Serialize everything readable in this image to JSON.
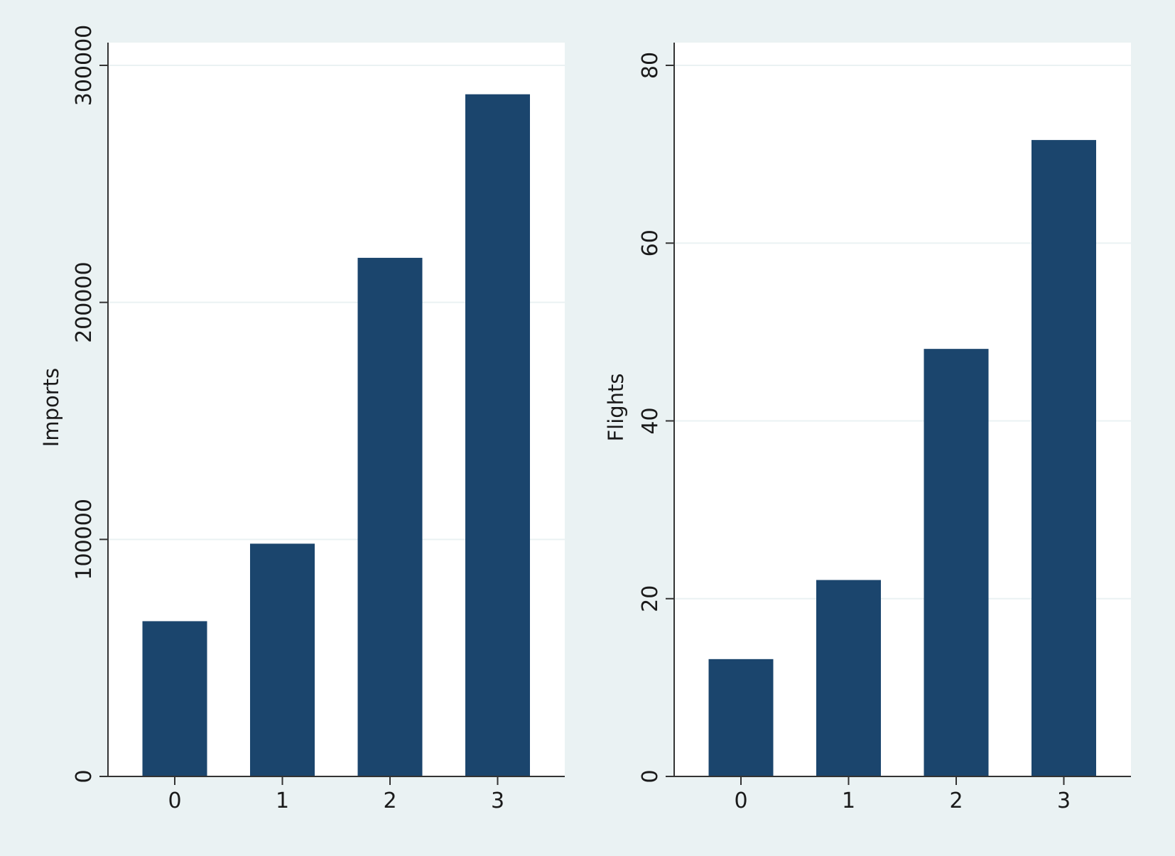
{
  "colors": {
    "outer_background": "#eaf2f3",
    "plot_background": "#ffffff",
    "bar": "#1b456d",
    "gridline": "#eaf2f3",
    "axis": "#333333"
  },
  "chart_data": [
    {
      "type": "bar",
      "categories": [
        "0",
        "1",
        "2",
        "3"
      ],
      "values": [
        65500,
        98200,
        218800,
        287800
      ],
      "title": "",
      "xlabel": "",
      "ylabel": "Imports",
      "ylim": [
        0,
        300000
      ],
      "yticks": [
        0,
        100000,
        200000,
        300000
      ],
      "ytick_labels": [
        "0",
        "100000",
        "200000",
        "300000"
      ],
      "grid": true,
      "legend": "none"
    },
    {
      "type": "bar",
      "categories": [
        "0",
        "1",
        "2",
        "3"
      ],
      "values": [
        13.2,
        22.1,
        48.1,
        71.6
      ],
      "title": "",
      "xlabel": "",
      "ylabel": "Flights",
      "ylim": [
        0,
        80
      ],
      "yticks": [
        0,
        20,
        40,
        60,
        80
      ],
      "ytick_labels": [
        "0",
        "20",
        "40",
        "60",
        "80"
      ],
      "grid": true,
      "legend": "none"
    }
  ]
}
